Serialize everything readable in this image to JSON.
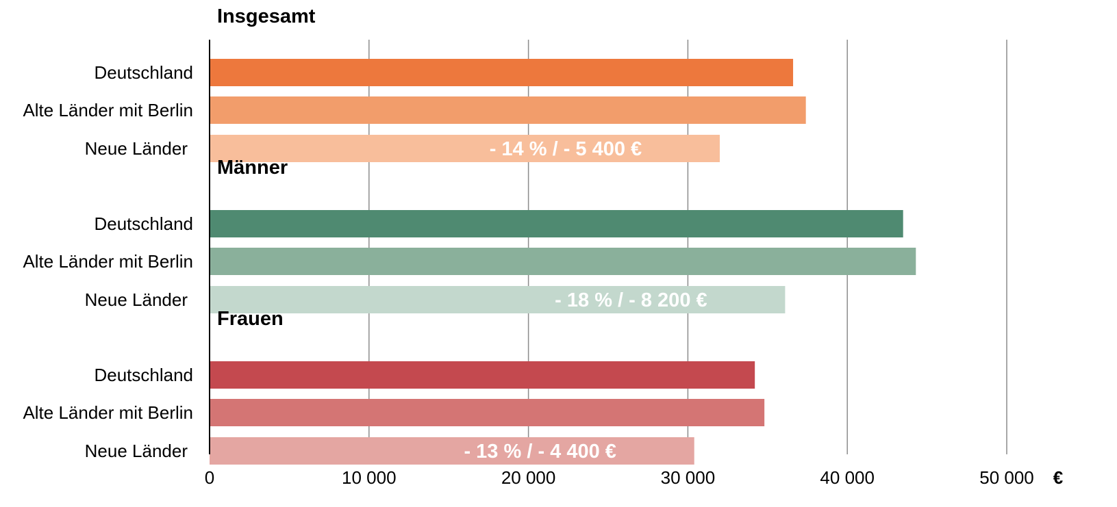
{
  "chart_data": {
    "type": "bar",
    "orientation": "horizontal",
    "unit": "€",
    "xlim": [
      0,
      50000
    ],
    "x_ticks": [
      {
        "value": 0,
        "label": "0"
      },
      {
        "value": 10000,
        "label": "10 000"
      },
      {
        "value": 20000,
        "label": "20 000"
      },
      {
        "value": 30000,
        "label": "30 000"
      },
      {
        "value": 40000,
        "label": "40 000"
      },
      {
        "value": 50000,
        "label": "50 000"
      }
    ],
    "grid": true,
    "groups": [
      {
        "title": "Insgesamt",
        "colors": [
          "#ED783D",
          "#F29D6B",
          "#F8BE9B"
        ],
        "categories": [
          "Deutschland",
          "Alte Länder mit Berlin",
          "Neue Länder"
        ],
        "values": [
          36600,
          37400,
          32000
        ],
        "annotation": "- 14 % / - 5 400 €"
      },
      {
        "title": "Männer",
        "colors": [
          "#4F8A71",
          "#8AB09B",
          "#C3D8CD"
        ],
        "categories": [
          "Deutschland",
          "Alte Länder mit Berlin",
          "Neue Länder"
        ],
        "values": [
          43500,
          44300,
          36100
        ],
        "annotation": "- 18 % / - 8 200 €"
      },
      {
        "title": "Frauen",
        "colors": [
          "#C4494F",
          "#D47574",
          "#E4A6A2"
        ],
        "categories": [
          "Deutschland",
          "Alte Länder mit Berlin",
          "Neue Länder"
        ],
        "values": [
          34200,
          34800,
          30400
        ],
        "annotation": "- 13 % / - 4 400 €"
      }
    ]
  }
}
